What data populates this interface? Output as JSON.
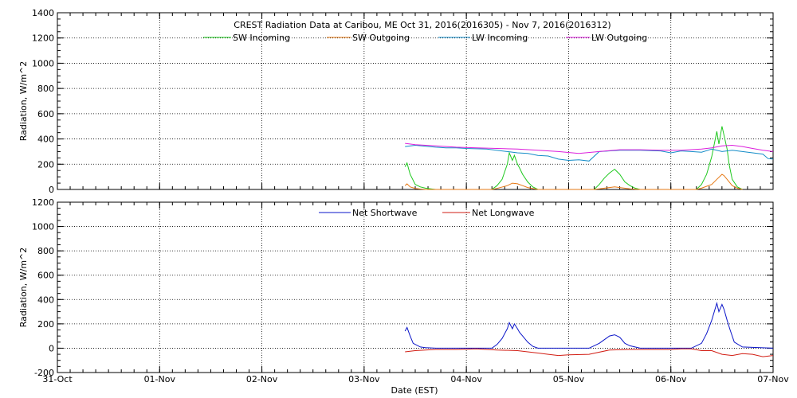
{
  "title": "CREST Radiation Data at Caribou, ME   Oct 31, 2016(2016305) - Nov  7, 2016(2016312)",
  "colors": {
    "sw_in": "#1ec81e",
    "sw_out": "#e67814",
    "lw_in": "#148cc8",
    "lw_out": "#dc1edc",
    "net_sw": "#0a14c8",
    "net_lw": "#d21e14",
    "grid": "#000000"
  },
  "chart_data": [
    {
      "type": "line",
      "ylabel": "Radiation, W/m^2",
      "ylim": [
        0,
        1400
      ],
      "yticks": [
        0,
        200,
        400,
        600,
        800,
        1000,
        1200,
        1400
      ],
      "xlim": [
        0,
        7
      ],
      "grid": true,
      "legend": "top",
      "series": [
        {
          "name": "SW Incoming",
          "key": "sw_in",
          "x": [
            3.4,
            3.42,
            3.45,
            3.5,
            3.55,
            3.6,
            3.65,
            3.7,
            4.25,
            4.3,
            4.35,
            4.4,
            4.42,
            4.45,
            4.47,
            4.5,
            4.52,
            4.55,
            4.6,
            4.65,
            4.7,
            5.25,
            5.3,
            5.35,
            5.4,
            5.45,
            5.5,
            5.55,
            5.6,
            5.65,
            5.7,
            6.25,
            6.3,
            6.35,
            6.4,
            6.45,
            6.47,
            6.5,
            6.52,
            6.55,
            6.57,
            6.6,
            6.65,
            6.7
          ],
          "y": [
            180,
            210,
            120,
            40,
            20,
            10,
            5,
            0,
            0,
            30,
            80,
            200,
            290,
            230,
            270,
            200,
            170,
            120,
            60,
            20,
            0,
            0,
            40,
            90,
            130,
            160,
            120,
            60,
            30,
            10,
            0,
            0,
            40,
            120,
            260,
            460,
            360,
            500,
            430,
            320,
            200,
            80,
            20,
            0
          ]
        },
        {
          "name": "SW Outgoing",
          "key": "sw_out",
          "x": [
            3.4,
            3.42,
            3.45,
            3.5,
            3.55,
            3.6,
            4.25,
            4.3,
            4.4,
            4.45,
            4.5,
            4.55,
            4.6,
            4.7,
            5.25,
            5.3,
            5.4,
            5.45,
            5.5,
            5.6,
            5.7,
            6.25,
            6.3,
            6.4,
            6.45,
            6.5,
            6.52,
            6.55,
            6.6,
            6.65,
            6.7
          ],
          "y": [
            30,
            45,
            20,
            8,
            3,
            0,
            0,
            8,
            30,
            50,
            45,
            30,
            15,
            0,
            0,
            5,
            15,
            20,
            15,
            5,
            0,
            0,
            10,
            40,
            80,
            120,
            110,
            80,
            30,
            10,
            0
          ]
        },
        {
          "name": "LW Incoming",
          "key": "lw_in",
          "x": [
            3.4,
            3.5,
            3.7,
            3.8,
            3.9,
            4.0,
            4.2,
            4.4,
            4.5,
            4.6,
            4.7,
            4.8,
            4.9,
            5.0,
            5.1,
            5.2,
            5.3,
            5.5,
            5.7,
            5.9,
            6.0,
            6.1,
            6.2,
            6.3,
            6.4,
            6.5,
            6.6,
            6.7,
            6.8,
            6.9,
            6.95,
            7.0
          ],
          "y": [
            340,
            350,
            335,
            330,
            330,
            325,
            320,
            300,
            290,
            285,
            270,
            265,
            240,
            230,
            235,
            225,
            300,
            310,
            310,
            305,
            290,
            305,
            300,
            295,
            320,
            300,
            310,
            300,
            290,
            280,
            245,
            240
          ]
        },
        {
          "name": "LW Outgoing",
          "key": "lw_out",
          "x": [
            3.4,
            3.5,
            3.7,
            3.9,
            4.1,
            4.3,
            4.5,
            4.7,
            4.9,
            5.1,
            5.3,
            5.5,
            5.7,
            5.9,
            6.1,
            6.3,
            6.4,
            6.5,
            6.6,
            6.7,
            6.8,
            6.9,
            7.0
          ],
          "y": [
            365,
            355,
            345,
            335,
            330,
            325,
            320,
            310,
            300,
            285,
            300,
            315,
            315,
            310,
            310,
            320,
            330,
            345,
            350,
            340,
            325,
            310,
            300
          ]
        }
      ]
    },
    {
      "type": "line",
      "ylabel": "Radiation, W/m^2",
      "xlabel": "Date (EST)",
      "ylim": [
        -200,
        1200
      ],
      "yticks": [
        -200,
        0,
        200,
        400,
        600,
        800,
        1000,
        1200
      ],
      "xlim": [
        0,
        7
      ],
      "xtick_labels": [
        "31-Oct",
        "01-Nov",
        "02-Nov",
        "03-Nov",
        "04-Nov",
        "05-Nov",
        "06-Nov",
        "07-Nov"
      ],
      "grid": true,
      "legend": "top",
      "series": [
        {
          "name": "Net Shortwave",
          "key": "net_sw",
          "x": [
            3.4,
            3.42,
            3.45,
            3.48,
            3.55,
            3.6,
            3.7,
            4.0,
            4.25,
            4.3,
            4.35,
            4.4,
            4.42,
            4.45,
            4.47,
            4.5,
            4.52,
            4.55,
            4.6,
            4.65,
            4.7,
            5.2,
            5.3,
            5.35,
            5.4,
            5.45,
            5.5,
            5.55,
            5.6,
            5.65,
            5.7,
            6.2,
            6.3,
            6.35,
            6.4,
            6.45,
            6.47,
            6.5,
            6.52,
            6.55,
            6.58,
            6.62,
            6.7,
            7.0
          ],
          "y": [
            140,
            170,
            100,
            40,
            10,
            5,
            0,
            0,
            0,
            30,
            80,
            160,
            210,
            160,
            200,
            160,
            130,
            100,
            50,
            15,
            0,
            0,
            40,
            70,
            100,
            110,
            90,
            40,
            20,
            10,
            0,
            0,
            40,
            120,
            230,
            370,
            300,
            360,
            320,
            230,
            150,
            50,
            10,
            0
          ]
        },
        {
          "name": "Net Longwave",
          "key": "net_lw",
          "x": [
            3.4,
            3.5,
            3.7,
            3.9,
            4.1,
            4.3,
            4.5,
            4.7,
            4.8,
            4.9,
            5.0,
            5.2,
            5.4,
            5.6,
            5.8,
            6.0,
            6.1,
            6.2,
            6.3,
            6.4,
            6.5,
            6.6,
            6.7,
            6.8,
            6.9,
            7.0
          ],
          "y": [
            -30,
            -20,
            -10,
            -10,
            -5,
            -15,
            -20,
            -40,
            -50,
            -60,
            -55,
            -50,
            -15,
            -10,
            -10,
            -10,
            -5,
            -5,
            -20,
            -20,
            -50,
            -60,
            -45,
            -50,
            -70,
            -60
          ]
        }
      ]
    }
  ]
}
